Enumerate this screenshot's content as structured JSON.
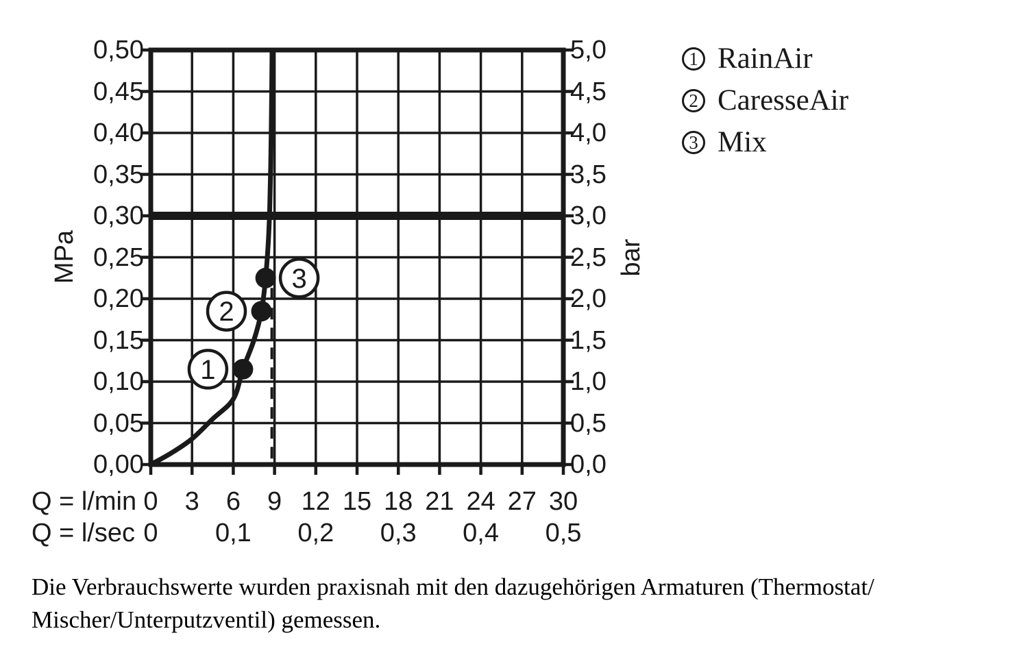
{
  "colors": {
    "ink": "#1a1a1a",
    "background": "#ffffff"
  },
  "chart_data": {
    "type": "line",
    "grid": true,
    "legend_position": "top-right",
    "x_axis": {
      "range": [
        0,
        30
      ],
      "rows": [
        {
          "label": "Q = l/min",
          "ticks": [
            0,
            3,
            6,
            9,
            12,
            15,
            18,
            21,
            24,
            27,
            30
          ],
          "tick_labels": [
            "0",
            "3",
            "6",
            "9",
            "12",
            "15",
            "18",
            "21",
            "24",
            "27",
            "30"
          ]
        },
        {
          "label": "Q = l/sec",
          "ticks": [
            0,
            6,
            12,
            18,
            24,
            30
          ],
          "tick_labels": [
            "0",
            "0,1",
            "0,2",
            "0,3",
            "0,4",
            "0,5"
          ]
        }
      ]
    },
    "y_axis_left": {
      "label": "MPa",
      "range": [
        0,
        0.5
      ],
      "ticks": [
        0,
        0.05,
        0.1,
        0.15,
        0.2,
        0.25,
        0.3,
        0.35,
        0.4,
        0.45,
        0.5
      ],
      "tick_labels": [
        "0,00",
        "0,05",
        "0,10",
        "0,15",
        "0,20",
        "0,25",
        "0,30",
        "0,35",
        "0,40",
        "0,45",
        "0,50"
      ]
    },
    "y_axis_right": {
      "label": "bar",
      "range": [
        0,
        5
      ],
      "ticks": [
        0,
        0.5,
        1.0,
        1.5,
        2.0,
        2.5,
        3.0,
        3.5,
        4.0,
        4.5,
        5.0
      ],
      "tick_labels": [
        "0,0",
        "0,5",
        "1,0",
        "1,5",
        "2,0",
        "2,5",
        "3,0",
        "3,5",
        "4,0",
        "4,5",
        "5,0"
      ]
    },
    "series": [
      {
        "name": "flow-curve",
        "points": [
          [
            0,
            0
          ],
          [
            1.5,
            0.014
          ],
          [
            3,
            0.031
          ],
          [
            4.5,
            0.055
          ],
          [
            6,
            0.079
          ],
          [
            6.7,
            0.115
          ],
          [
            7.5,
            0.15
          ],
          [
            8.05,
            0.185
          ],
          [
            8.35,
            0.225
          ],
          [
            8.55,
            0.27
          ],
          [
            8.65,
            0.31
          ],
          [
            8.72,
            0.36
          ],
          [
            8.78,
            0.43
          ],
          [
            8.82,
            0.5
          ]
        ]
      }
    ],
    "marked_points": [
      {
        "number": "1",
        "name": "RainAir",
        "lmin": 6.7,
        "mpa": 0.115,
        "label_side": "left"
      },
      {
        "number": "2",
        "name": "CaresseAir",
        "lmin": 8.05,
        "mpa": 0.185,
        "label_side": "left"
      },
      {
        "number": "3",
        "name": "Mix",
        "lmin": 8.35,
        "mpa": 0.225,
        "label_side": "right"
      }
    ],
    "reference_lines": [
      {
        "orientation": "horizontal",
        "mpa": 0.3,
        "style": "thick"
      },
      {
        "orientation": "vertical",
        "lmin": 8.8,
        "mpa_from": 0,
        "mpa_to": 0.213,
        "style": "dashed"
      }
    ]
  },
  "legend": {
    "items": [
      {
        "number": "1",
        "label": "RainAir"
      },
      {
        "number": "2",
        "label": "CaresseAir"
      },
      {
        "number": "3",
        "label": "Mix"
      }
    ]
  },
  "caption": {
    "lines": [
      "Die Verbrauchswerte wurden praxisnah mit den dazugehörigen Armaturen (Thermostat/",
      "Mischer/Unterputzventil) gemessen."
    ]
  }
}
